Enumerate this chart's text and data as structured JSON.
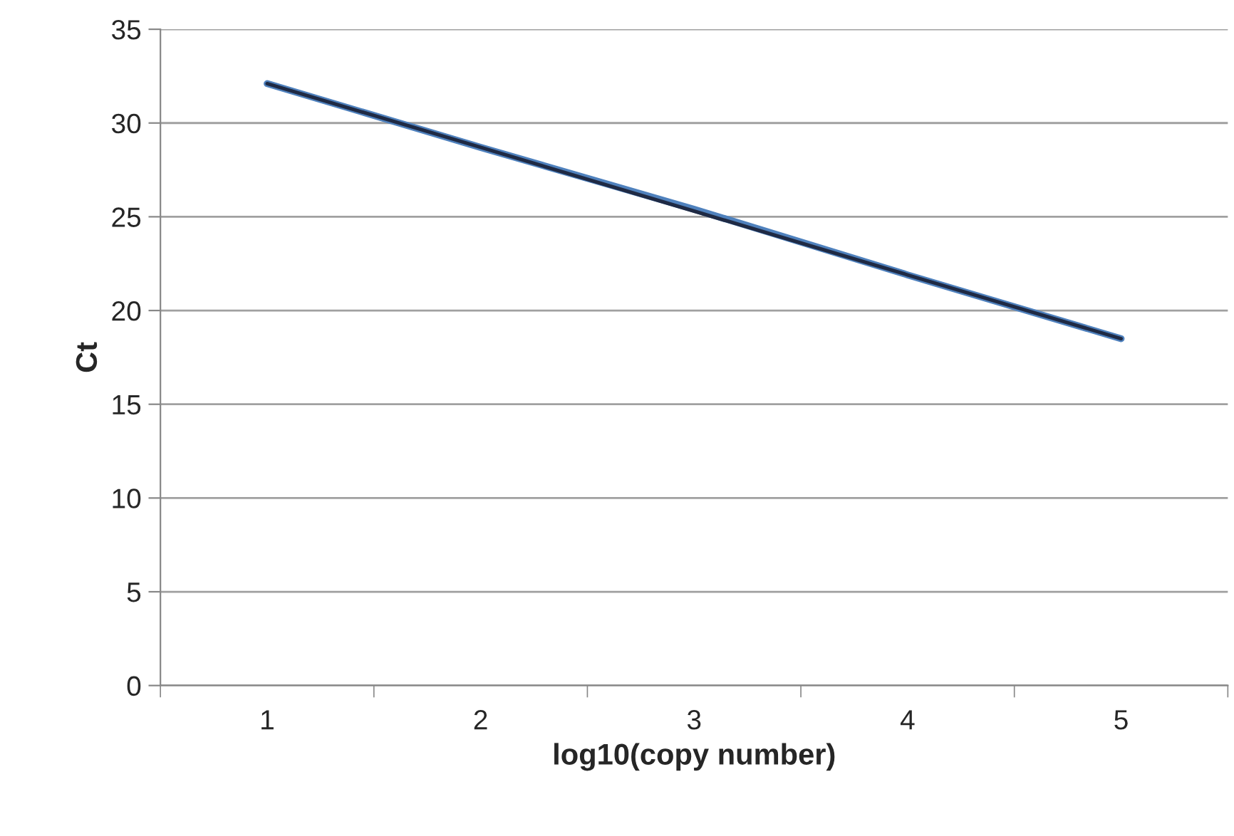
{
  "chart_data": {
    "type": "line",
    "xlabel": "log10(copy number)",
    "ylabel": "Ct",
    "categories": [
      "1",
      "2",
      "3",
      "4",
      "5"
    ],
    "series": [
      {
        "color": "#4f81bd",
        "values": [
          32.1,
          28.7,
          25.4,
          21.9,
          18.5
        ]
      },
      {
        "color": "#1f2a44",
        "values": [
          32.1,
          28.7,
          25.3,
          21.9,
          18.5
        ]
      }
    ],
    "ylim": [
      0,
      35
    ],
    "yticks": [
      0,
      5,
      10,
      15,
      20,
      25,
      30,
      35
    ],
    "grid": "y",
    "legend": false,
    "marker": "none",
    "line_style": "solid"
  }
}
